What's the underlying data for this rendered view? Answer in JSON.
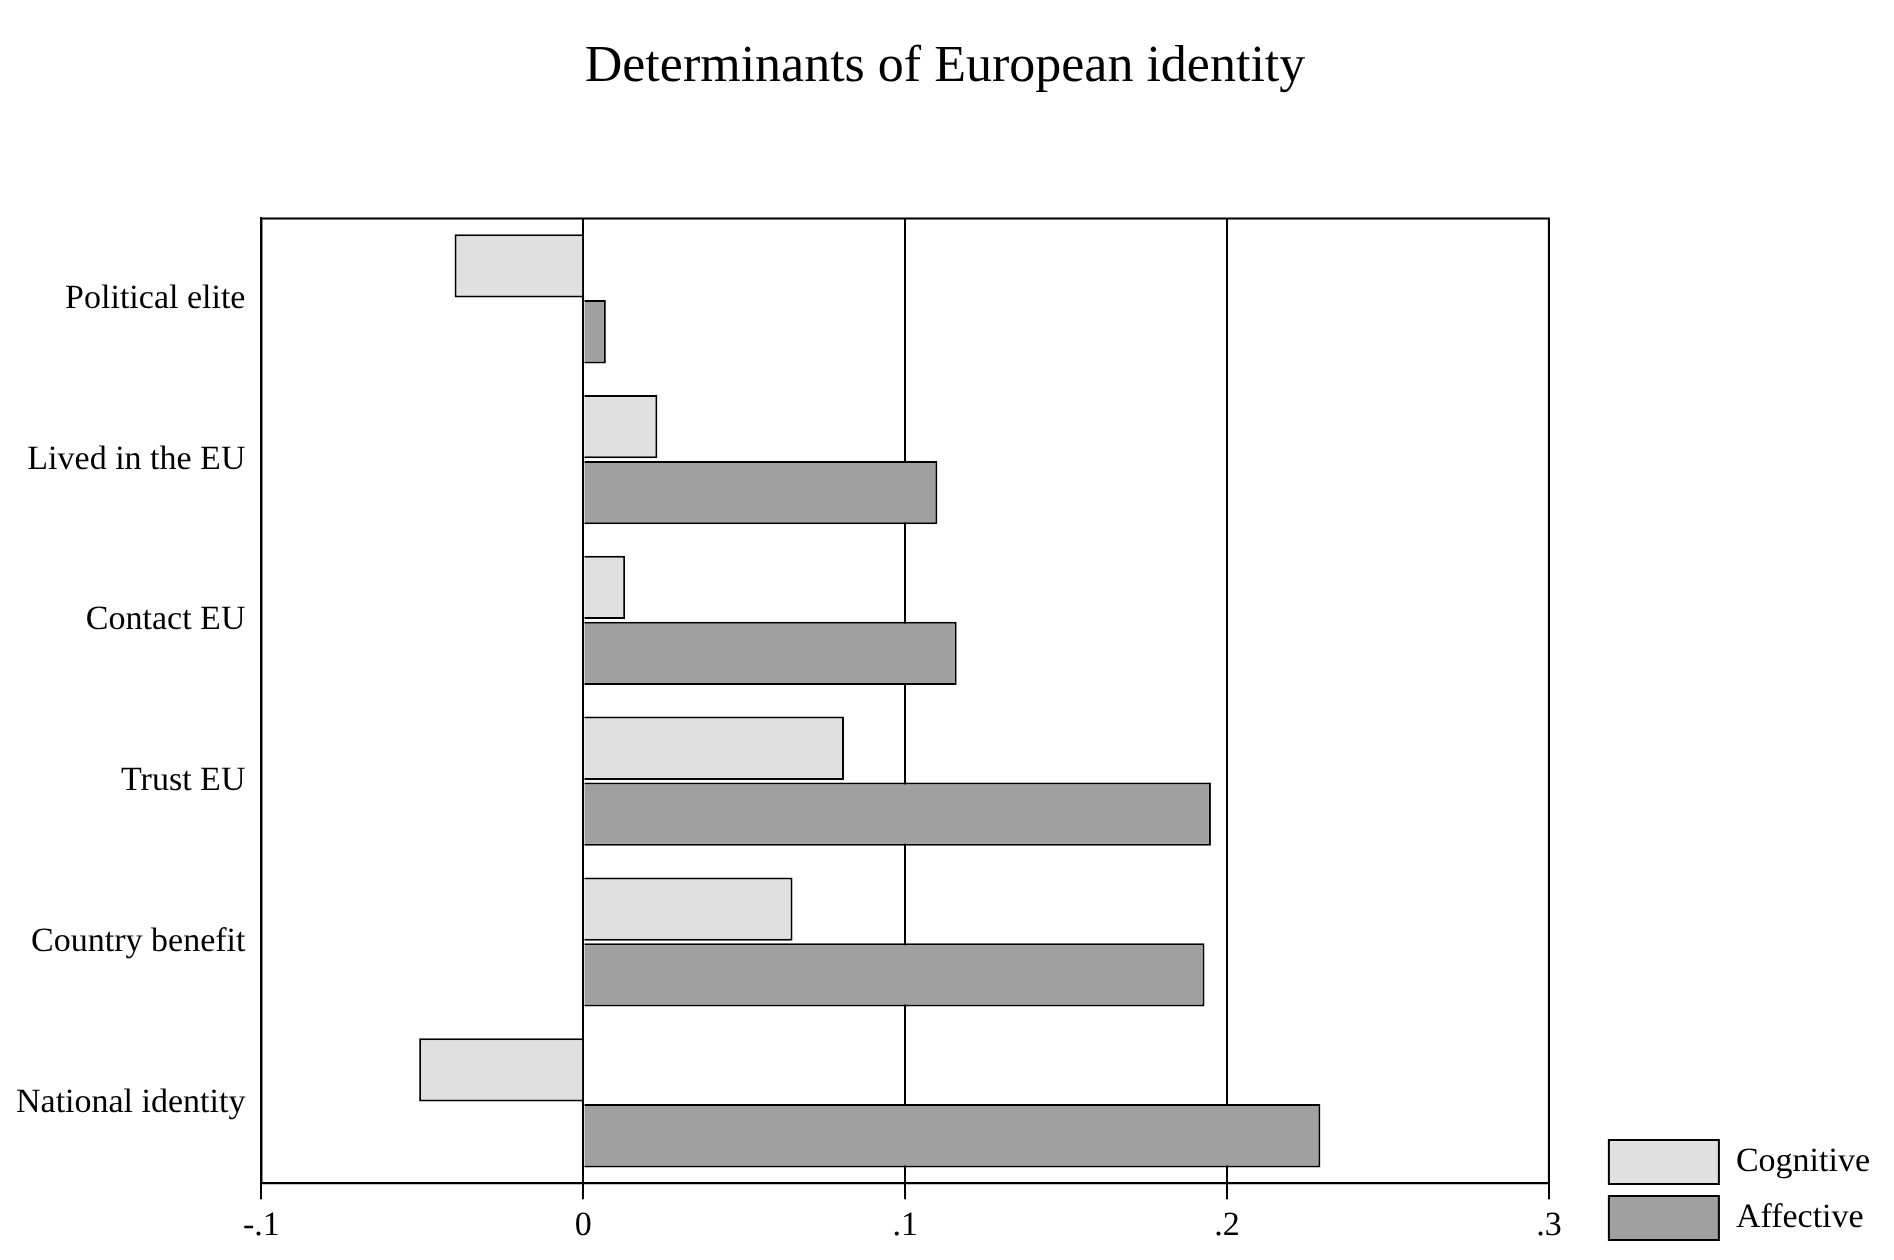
{
  "chart_data": {
    "type": "bar",
    "orientation": "horizontal",
    "title": "Determinants of European identity",
    "categories": [
      "Political elite",
      "Lived in the EU",
      "Contact EU",
      "Trust EU",
      "Country benefit",
      "National identity"
    ],
    "series": [
      {
        "name": "Cognitive",
        "color": "#e0e0e0",
        "values": [
          -0.04,
          0.023,
          0.013,
          0.081,
          0.065,
          -0.051
        ]
      },
      {
        "name": "Affective",
        "color": "#a0a0a0",
        "values": [
          0.007,
          0.11,
          0.116,
          0.195,
          0.193,
          0.229
        ]
      }
    ],
    "xlim": [
      -0.1,
      0.3
    ],
    "xticks": [
      {
        "value": -0.1,
        "label": "-.1"
      },
      0,
      {
        "value": 0.1,
        "label": ".1"
      },
      {
        "value": 0.2,
        "label": ".2"
      },
      {
        "value": 0.3,
        "label": ".3"
      }
    ],
    "grid": "x",
    "legend": "bottom right"
  }
}
